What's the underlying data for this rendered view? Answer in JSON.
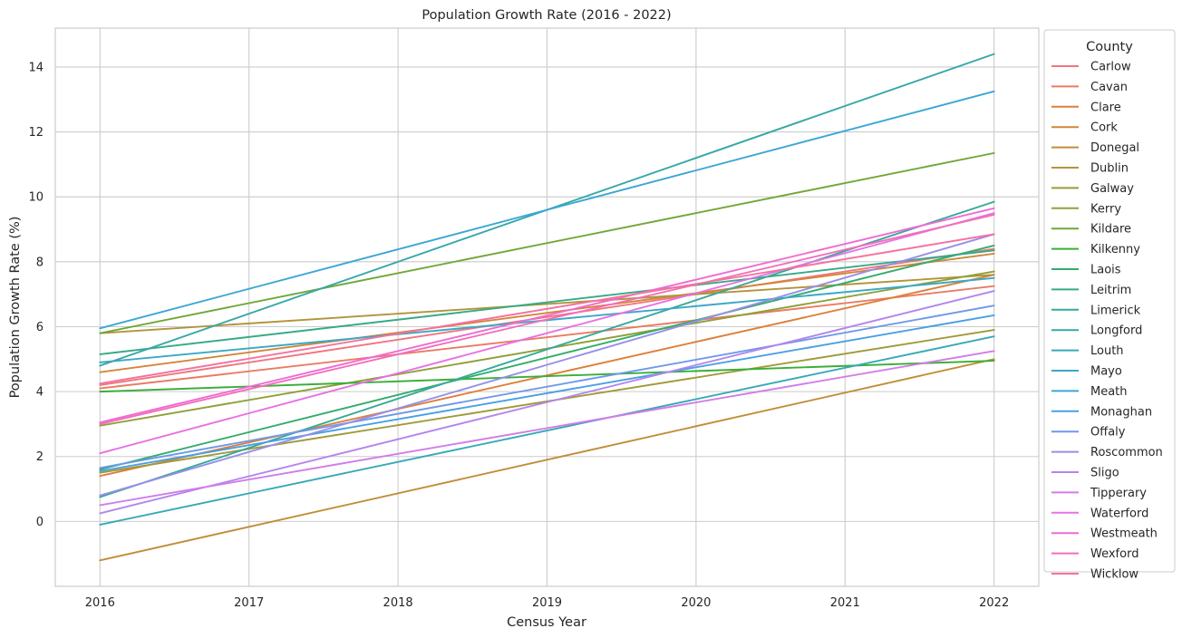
{
  "chart_data": {
    "type": "line",
    "title": "Population Growth Rate (2016 - 2022)",
    "xlabel": "Census Year",
    "ylabel": "Population Growth Rate (%)",
    "xlim": [
      2015.7,
      2022.3
    ],
    "ylim": [
      -2.0,
      15.2
    ],
    "x_ticks": [
      2016,
      2017,
      2018,
      2019,
      2020,
      2021,
      2022
    ],
    "y_ticks": [
      0,
      2,
      4,
      6,
      8,
      10,
      12,
      14
    ],
    "grid": true,
    "legend": {
      "title": "County",
      "placement": "outside-right"
    },
    "x": [
      2016,
      2022
    ],
    "series": [
      {
        "name": "Carlow",
        "color": "#f0757f",
        "values": [
          4.2,
          8.4
        ]
      },
      {
        "name": "Cavan",
        "color": "#ea7b62",
        "values": [
          4.1,
          7.25
        ]
      },
      {
        "name": "Clare",
        "color": "#de7f3b",
        "values": [
          1.4,
          7.6
        ]
      },
      {
        "name": "Cork",
        "color": "#d2863a",
        "values": [
          4.6,
          8.25
        ]
      },
      {
        "name": "Donegal",
        "color": "#c08e39",
        "values": [
          -1.2,
          5.0
        ]
      },
      {
        "name": "Dublin",
        "color": "#b1943a",
        "values": [
          5.8,
          7.6
        ]
      },
      {
        "name": "Galway",
        "color": "#a09a39",
        "values": [
          1.5,
          5.9
        ]
      },
      {
        "name": "Kerry",
        "color": "#8fa039",
        "values": [
          2.95,
          7.7
        ]
      },
      {
        "name": "Kildare",
        "color": "#70a838",
        "values": [
          5.8,
          11.35
        ]
      },
      {
        "name": "Kilkenny",
        "color": "#3aae39",
        "values": [
          4.0,
          4.95
        ]
      },
      {
        "name": "Laois",
        "color": "#34ac6c",
        "values": [
          1.6,
          8.5
        ]
      },
      {
        "name": "Leitrim",
        "color": "#36aa86",
        "values": [
          5.15,
          8.35
        ]
      },
      {
        "name": "Limerick",
        "color": "#37a998",
        "values": [
          0.75,
          9.85
        ]
      },
      {
        "name": "Longford",
        "color": "#38a8a7",
        "values": [
          4.8,
          14.4
        ]
      },
      {
        "name": "Louth",
        "color": "#38a9b6",
        "values": [
          -0.1,
          5.7
        ]
      },
      {
        "name": "Mayo",
        "color": "#3aa8c5",
        "values": [
          4.9,
          7.5
        ]
      },
      {
        "name": "Meath",
        "color": "#3ca7d3",
        "values": [
          5.95,
          13.25
        ]
      },
      {
        "name": "Monaghan",
        "color": "#49a0e3",
        "values": [
          1.55,
          6.35
        ]
      },
      {
        "name": "Offaly",
        "color": "#6f99e9",
        "values": [
          1.65,
          6.65
        ]
      },
      {
        "name": "Roscommon",
        "color": "#978ee8",
        "values": [
          0.8,
          8.85
        ]
      },
      {
        "name": "Sligo",
        "color": "#b386ec",
        "values": [
          0.25,
          7.1
        ]
      },
      {
        "name": "Tipperary",
        "color": "#d27ce9",
        "values": [
          0.5,
          5.25
        ]
      },
      {
        "name": "Waterford",
        "color": "#e770e4",
        "values": [
          2.1,
          9.5
        ]
      },
      {
        "name": "Westmeath",
        "color": "#f06bd3",
        "values": [
          3.05,
          9.65
        ]
      },
      {
        "name": "Wexford",
        "color": "#f46dbc",
        "values": [
          3.0,
          9.45
        ]
      },
      {
        "name": "Wicklow",
        "color": "#f4729f",
        "values": [
          4.25,
          8.85
        ]
      }
    ]
  }
}
